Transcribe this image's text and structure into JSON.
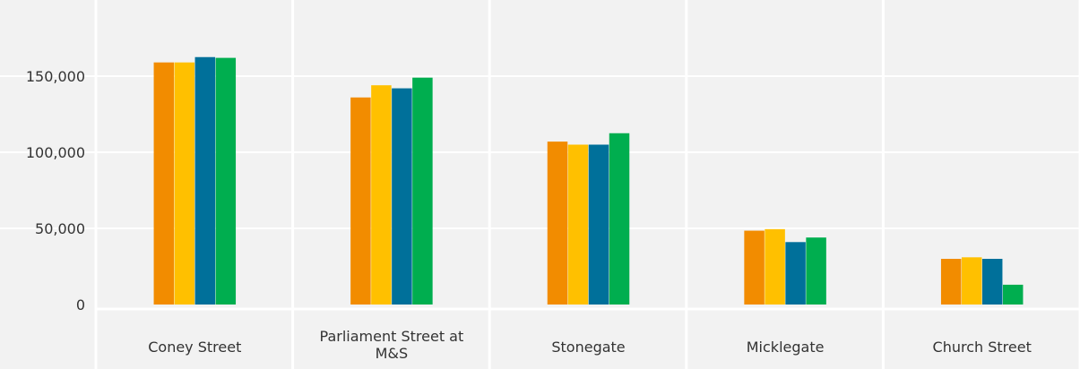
{
  "chart_data": {
    "type": "bar",
    "title": "",
    "xlabel": "",
    "ylabel": "",
    "ylim": [
      0,
      190000
    ],
    "yticks": [
      0,
      50000,
      100000,
      150000
    ],
    "ytick_labels": [
      "0",
      "50,000",
      "100,000",
      "150,000"
    ],
    "grid": true,
    "categories": [
      [
        "Coney Street"
      ],
      [
        "Parliament Street at",
        "M&S"
      ],
      [
        "Stonegate"
      ],
      [
        "Micklegate"
      ],
      [
        "Church Street"
      ]
    ],
    "series": [
      {
        "color": "#f28c00",
        "values": [
          159000,
          136000,
          107000,
          48500,
          30000
        ]
      },
      {
        "color": "#ffc000",
        "values": [
          159000,
          144000,
          105000,
          49500,
          31000
        ]
      },
      {
        "color": "#00709a",
        "values": [
          162500,
          142000,
          105000,
          41000,
          30000
        ]
      },
      {
        "color": "#00ae4f",
        "values": [
          162000,
          149000,
          112500,
          44000,
          13000
        ]
      }
    ]
  },
  "colors": {
    "background": "#f2f2f2",
    "grid": "#ffffff",
    "text": "#333333"
  }
}
